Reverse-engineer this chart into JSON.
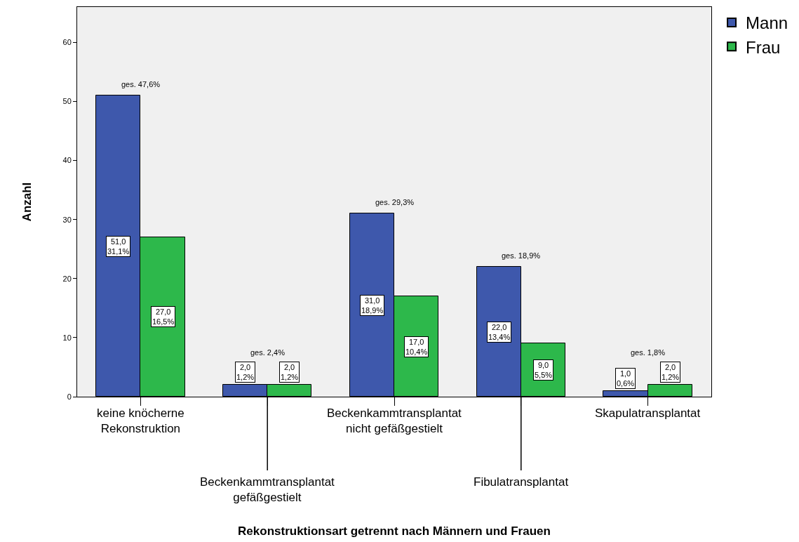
{
  "chart_data": {
    "type": "bar",
    "xlabel": "Rekonstruktionsart getrennt nach Männern und Frauen",
    "ylabel": "Anzahl",
    "categories": [
      "keine knöcherne\nRekonstruktion",
      "Beckenkammtransplantat\ngefäßgestielt",
      "Beckenkammtransplantat\nnicht gefäßgestielt",
      "Fibulatransplantat",
      "Skapulatransplantat"
    ],
    "series": [
      {
        "name": "Mann",
        "color": "#3e58ac",
        "values": [
          51,
          2,
          31,
          22,
          1
        ],
        "value_labels": [
          "51,0\n31,1%",
          "2,0\n1,2%",
          "31,0\n18,9%",
          "22,0\n13,4%",
          "1,0\n0,6%"
        ]
      },
      {
        "name": "Frau",
        "color": "#2db84b",
        "values": [
          27,
          2,
          17,
          9,
          2
        ],
        "value_labels": [
          "27,0\n16,5%",
          "2,0\n1,2%",
          "17,0\n10,4%",
          "9,0\n5,5%",
          "2,0\n1,2%"
        ]
      }
    ],
    "annotations": [
      "ges. 47,6%",
      "ges. 2,4%",
      "ges. 29,3%",
      "ges. 18,9%",
      "ges. 1,8%"
    ],
    "ylim": [
      0,
      66
    ],
    "yticks": [
      0,
      10,
      20,
      30,
      40,
      50,
      60
    ],
    "grid": false,
    "legend": "top right"
  }
}
